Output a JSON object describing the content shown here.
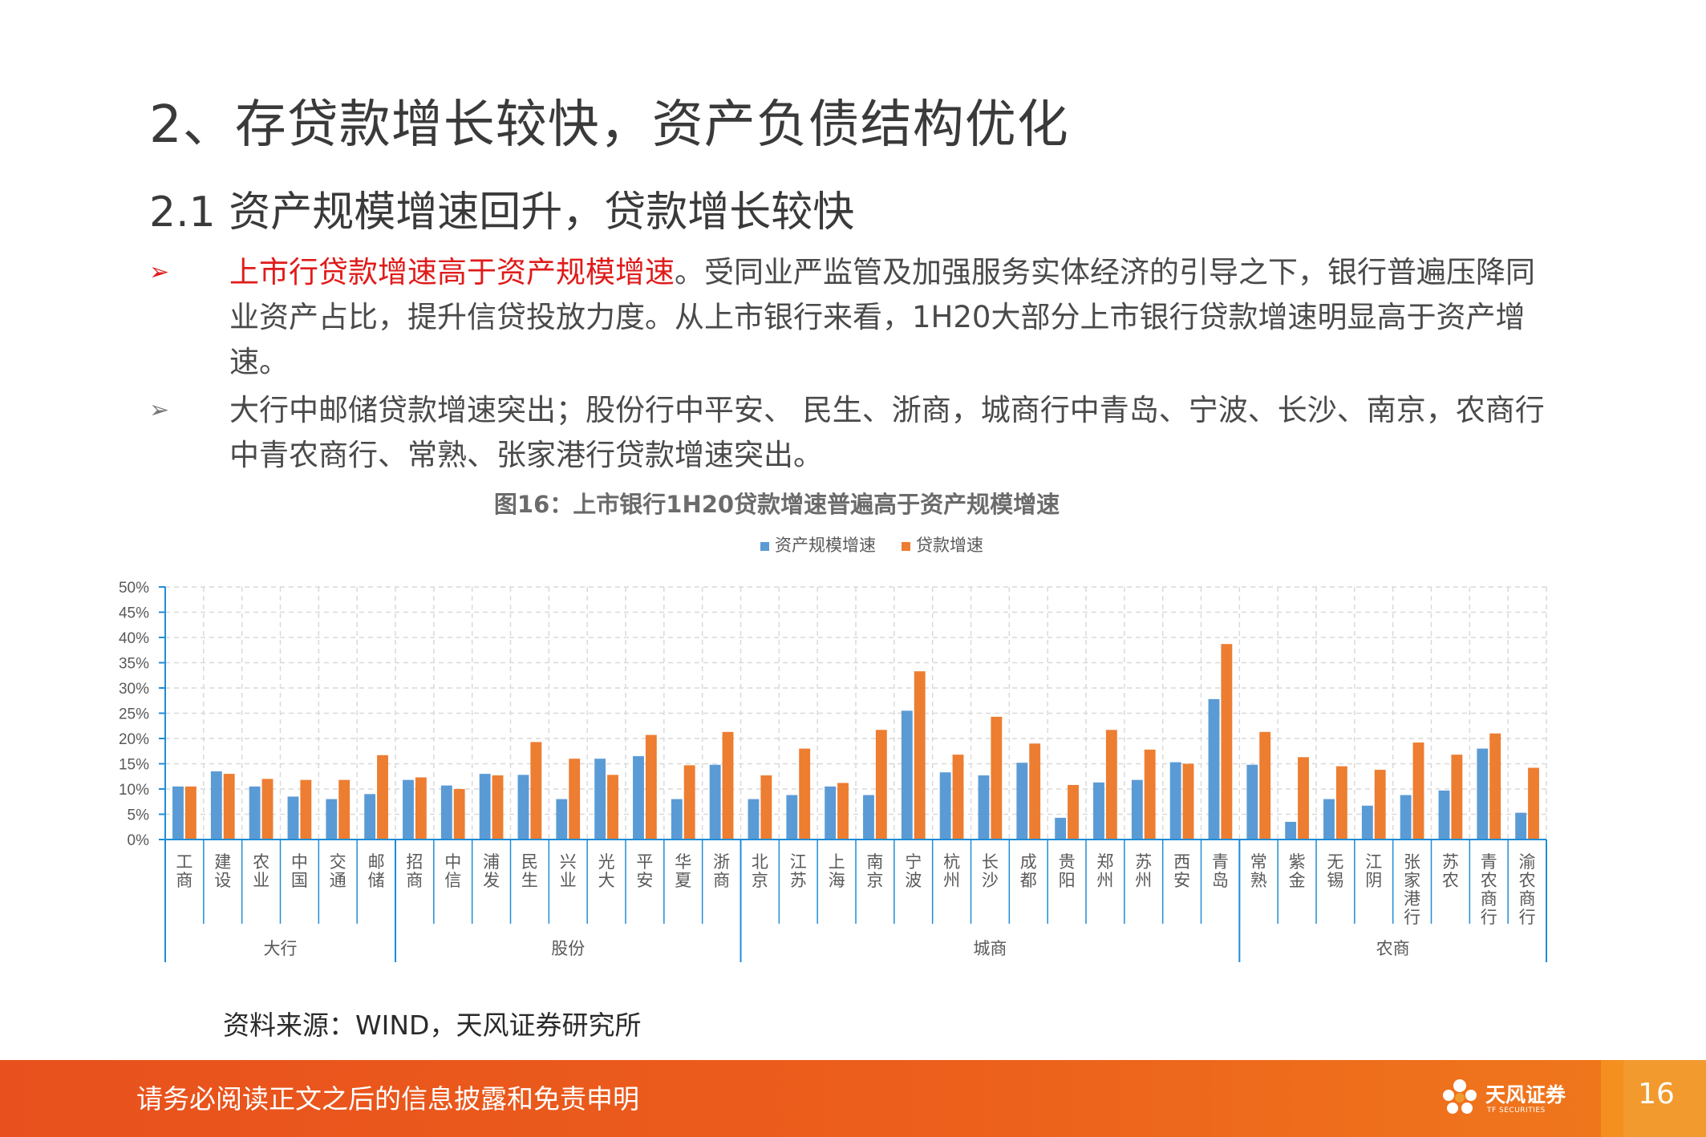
{
  "heading": "2、存贷款增长较快，资产负债结构优化",
  "subheading": "2.1 资产规模增速回升，贷款增长较快",
  "bullets": [
    {
      "marker": "➢",
      "highlight": "上市行贷款增速高于资产规模增速",
      "text": "。受同业严监管及加强服务实体经济的引导之下，银行普遍压降同业资产占比，提升信贷投放力度。从上市银行来看，1H20大部分上市银行贷款增速明显高于资产增速。"
    },
    {
      "marker": "➢",
      "highlight": "",
      "text": "大行中邮储贷款增速突出；股份行中平安、 民生、浙商，城商行中青岛、宁波、长沙、南京，农商行中青农商行、常熟、张家港行贷款增速突出。"
    }
  ],
  "chart_title": "图16：上市银行1H20贷款增速普遍高于资产规模增速",
  "source": "资料来源：WIND，天风证券研究所",
  "footer": {
    "disclaimer": "请务必阅读正文之后的信息披露和免责申明",
    "logo_name": "天风证券",
    "logo_sub": "TF SECURITIES",
    "page": "16"
  },
  "colors": {
    "asset": "#5b9bd5",
    "loan": "#ed7d31",
    "grid": "#d9d9d9",
    "group_axis": "#1f8dd6",
    "footer": "#e8511d",
    "highlight": "#e01b1b"
  },
  "chart_data": {
    "type": "bar",
    "title": "图16：上市银行1H20贷款增速普遍高于资产规模增速",
    "legend_position": "top",
    "grid": true,
    "ylim": [
      0,
      50
    ],
    "y_ticks": [
      "0%",
      "5%",
      "10%",
      "15%",
      "20%",
      "25%",
      "30%",
      "35%",
      "40%",
      "45%",
      "50%"
    ],
    "categories": [
      "工商",
      "建设",
      "农业",
      "中国",
      "交通",
      "邮储",
      "招商",
      "中信",
      "浦发",
      "民生",
      "兴业",
      "光大",
      "平安",
      "华夏",
      "浙商",
      "北京",
      "江苏",
      "上海",
      "南京",
      "宁波",
      "杭州",
      "长沙",
      "成都",
      "贵阳",
      "郑州",
      "苏州",
      "西安",
      "青岛",
      "常熟",
      "紫金",
      "无锡",
      "江阴",
      "张家港行",
      "苏农",
      "青农商行",
      "渝农商行"
    ],
    "groups": [
      {
        "name": "大行",
        "count": 6
      },
      {
        "name": "股份",
        "count": 9
      },
      {
        "name": "城商",
        "count": 13
      },
      {
        "name": "农商",
        "count": 8
      }
    ],
    "series": [
      {
        "name": "资产规模增速",
        "values": [
          10.5,
          13.5,
          10.5,
          8.5,
          8.0,
          9.0,
          11.8,
          10.7,
          13.0,
          12.8,
          8.0,
          16.0,
          16.5,
          8.0,
          14.8,
          8.0,
          8.8,
          10.5,
          8.8,
          25.5,
          13.3,
          12.7,
          15.2,
          4.3,
          11.3,
          11.8,
          15.3,
          27.8,
          14.8,
          3.5,
          8.0,
          6.7,
          8.8,
          9.7,
          18.0,
          5.3
        ]
      },
      {
        "name": "贷款增速",
        "values": [
          10.5,
          13.0,
          12.0,
          11.8,
          11.8,
          16.7,
          12.3,
          10.0,
          12.7,
          19.3,
          16.0,
          12.8,
          20.7,
          14.7,
          21.3,
          12.7,
          18.0,
          11.2,
          21.7,
          33.3,
          16.8,
          24.3,
          19.0,
          10.8,
          21.7,
          17.8,
          15.0,
          38.7,
          21.3,
          16.3,
          14.5,
          13.8,
          19.2,
          16.8,
          21.0,
          14.2
        ]
      }
    ]
  }
}
